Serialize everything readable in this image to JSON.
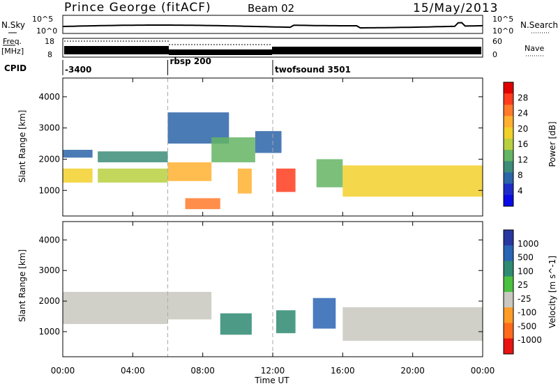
{
  "header": {
    "site": "Prince George (fitACF)",
    "beam": "Beam 02",
    "date": "15/May/2013"
  },
  "top_panels": {
    "nsky_label": "N.Sky",
    "nsearch_label": "N.Search",
    "noise_tick_hi": "10^5",
    "noise_tick_lo": "10^0",
    "freq_label": "Freq.",
    "freq_unit": "[MHz]",
    "freq_tick_hi": "18",
    "freq_tick_lo": "8",
    "nave_label": "Nave",
    "nave_tick_hi": "60",
    "nave_tick_lo": "0",
    "cpid_label": "CPID",
    "cpid_segments": [
      {
        "label": "-3400",
        "start_hour": 0
      },
      {
        "label": "rbsp 200",
        "start_hour": 6
      },
      {
        "label": "twofsound 3501",
        "start_hour": 12
      }
    ]
  },
  "axes": {
    "xlabel": "Time UT",
    "xticks": [
      "00:00",
      "04:00",
      "08:00",
      "12:00",
      "16:00",
      "20:00",
      "00:00"
    ],
    "xtick_hours": [
      0,
      4,
      8,
      12,
      16,
      20,
      24
    ],
    "ylabel": "Slant Range [km]",
    "yticks": [
      "1000",
      "2000",
      "3000",
      "4000"
    ],
    "ytick_values": [
      1000,
      2000,
      3000,
      4000
    ],
    "ylim": [
      180,
      4600
    ]
  },
  "power_bar": {
    "title": "Power [dB]",
    "ticks": [
      "28",
      "24",
      "20",
      "16",
      "12",
      "8",
      "4"
    ],
    "colors": [
      "#e00000",
      "#ff3c1e",
      "#ff7a2a",
      "#ffb030",
      "#f2d02a",
      "#b8d040",
      "#64b464",
      "#3c8c78",
      "#2c64a8",
      "#1e2cc8",
      "#0a0ae6"
    ]
  },
  "velocity_bar": {
    "title": "Velocity [m s^-1]",
    "ticks": [
      "1000",
      "500",
      "100",
      "25",
      "-25",
      "-100",
      "-500",
      "-1000"
    ],
    "colors": [
      "#2838a0",
      "#2a64b4",
      "#2e8a72",
      "#4cc040",
      "#c8c8c0",
      "#ff9c28",
      "#ff6a1c",
      "#e81414"
    ]
  },
  "chart_data": {
    "type": "heatmap",
    "title": "Prince George (fitACF) Beam 02 15/May/2013",
    "x_range_hours": [
      0,
      24
    ],
    "y_range_km": [
      180,
      4600
    ],
    "power_regions": [
      {
        "t0": 0,
        "t1": 1.7,
        "r0": 2050,
        "r1": 2300,
        "value": 6
      },
      {
        "t0": 0,
        "t1": 1.7,
        "r0": 1250,
        "r1": 1700,
        "value": 18
      },
      {
        "t0": 2.0,
        "t1": 6,
        "r0": 1900,
        "r1": 2250,
        "value": 9
      },
      {
        "t0": 2.0,
        "t1": 6,
        "r0": 1250,
        "r1": 1700,
        "value": 17
      },
      {
        "t0": 6,
        "t1": 8.5,
        "r0": 1300,
        "r1": 1900,
        "value": 24
      },
      {
        "t0": 7,
        "t1": 9,
        "r0": 400,
        "r1": 750,
        "value": 26
      },
      {
        "t0": 6,
        "t1": 9.5,
        "r0": 2500,
        "r1": 3500,
        "value": 8
      },
      {
        "t0": 8.5,
        "t1": 11,
        "r0": 1900,
        "r1": 2700,
        "value": 12
      },
      {
        "t0": 10,
        "t1": 10.8,
        "r0": 900,
        "r1": 1700,
        "value": 22
      },
      {
        "t0": 11,
        "t1": 12.5,
        "r0": 2200,
        "r1": 2900,
        "value": 6
      },
      {
        "t0": 12.2,
        "t1": 13.3,
        "r0": 950,
        "r1": 1700,
        "value": 28
      },
      {
        "t0": 14.5,
        "t1": 16,
        "r0": 1100,
        "r1": 2000,
        "value": 14
      },
      {
        "t0": 16,
        "t1": 24,
        "r0": 800,
        "r1": 1800,
        "value": 20
      }
    ],
    "velocity_regions": [
      {
        "t0": 0,
        "t1": 6,
        "r0": 1250,
        "r1": 2300,
        "value": 0
      },
      {
        "t0": 6,
        "t1": 8.5,
        "r0": 1400,
        "r1": 2300,
        "value": 0
      },
      {
        "t0": 9,
        "t1": 10.8,
        "r0": 900,
        "r1": 1600,
        "value": 300
      },
      {
        "t0": 12.2,
        "t1": 13.3,
        "r0": 950,
        "r1": 1700,
        "value": 200
      },
      {
        "t0": 14.3,
        "t1": 15.6,
        "r0": 1100,
        "r1": 2100,
        "value": 600
      },
      {
        "t0": 16,
        "t1": 24,
        "r0": 700,
        "r1": 1800,
        "value": 0
      }
    ]
  }
}
